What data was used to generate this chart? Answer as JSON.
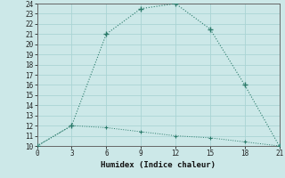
{
  "xlabel": "Humidex (Indice chaleur)",
  "background_color": "#cce8e8",
  "grid_color": "#aad4d4",
  "line_color": "#2a7a6a",
  "xlim": [
    0,
    21
  ],
  "ylim": [
    10,
    24
  ],
  "xticks": [
    0,
    3,
    6,
    9,
    12,
    15,
    18,
    21
  ],
  "yticks": [
    10,
    11,
    12,
    13,
    14,
    15,
    16,
    17,
    18,
    19,
    20,
    21,
    22,
    23,
    24
  ],
  "line1_x": [
    0,
    3,
    6,
    9,
    12,
    15,
    18,
    21
  ],
  "line1_y": [
    10,
    12,
    21,
    23.5,
    24,
    21.5,
    16,
    10
  ],
  "line2_x": [
    0,
    3,
    6,
    9,
    12,
    15,
    18,
    21
  ],
  "line2_y": [
    10,
    12,
    11.8,
    11.4,
    11.0,
    10.8,
    10.4,
    10
  ]
}
